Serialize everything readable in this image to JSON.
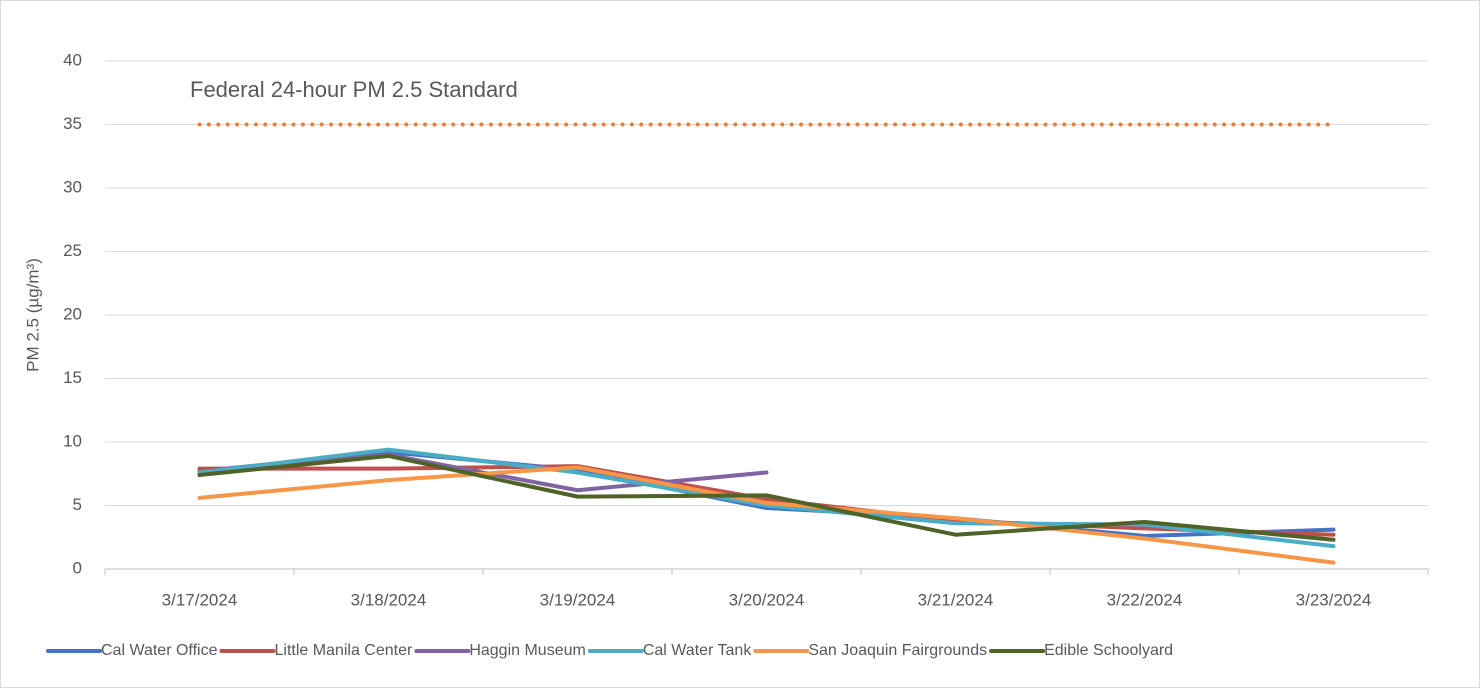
{
  "chart_data": {
    "type": "line",
    "y_label": "PM 2.5 (µg/m³)",
    "categories": [
      "3/17/2024",
      "3/18/2024",
      "3/19/2024",
      "3/20/2024",
      "3/21/2024",
      "3/22/2024",
      "3/23/2024"
    ],
    "series": [
      {
        "name": "Cal Water Office",
        "color": "#4472c4",
        "values": [
          7.7,
          9.2,
          7.8,
          4.8,
          4.0,
          2.6,
          3.1
        ]
      },
      {
        "name": "Little Manila Center",
        "color": "#c0504d",
        "values": [
          7.9,
          7.9,
          8.1,
          5.5,
          3.8,
          3.2,
          2.7
        ]
      },
      {
        "name": "Haggin Museum",
        "color": "#8064a2",
        "values": [
          7.6,
          9.0,
          6.2,
          7.6,
          null,
          null,
          null
        ]
      },
      {
        "name": "Cal Water Tank",
        "color": "#4bacc6",
        "values": [
          7.6,
          9.4,
          7.6,
          5.0,
          3.6,
          3.5,
          1.8
        ]
      },
      {
        "name": "San Joaquin Fairgrounds",
        "color": "#f79646",
        "values": [
          5.6,
          7.0,
          8.0,
          5.2,
          4.0,
          2.4,
          0.5
        ]
      },
      {
        "name": "Edible Schoolyard",
        "color": "#4f6228",
        "values": [
          7.4,
          8.9,
          5.7,
          5.8,
          2.7,
          3.7,
          2.3
        ]
      }
    ],
    "reference_line": {
      "label": "Federal 24-hour PM 2.5 Standard",
      "value": 35,
      "color": "#ed7d31"
    },
    "ylim": [
      0,
      40
    ],
    "yticks": [
      0,
      5,
      10,
      15,
      20,
      25,
      30,
      35,
      40
    ],
    "grid": true,
    "legend": "bottom"
  }
}
